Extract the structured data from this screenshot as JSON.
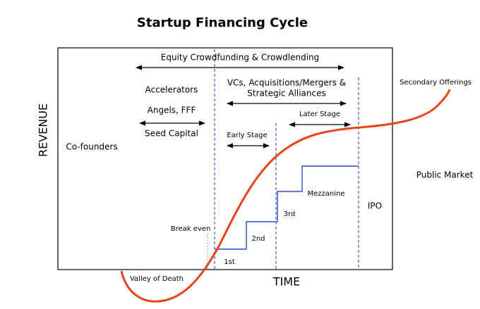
{
  "title": "Startup Financing Cycle",
  "axes": {
    "y": "REVENUE",
    "x": "TIME"
  },
  "labels": {
    "equity": "Equity Crowdfunding & Crowdlending",
    "accelerators": "Accelerators",
    "angels": "Angels, FFF",
    "seed": "Seed Capital",
    "cofounders": "Co-founders",
    "vcs_line1": "VCs, Acquisitions/Mergers &",
    "vcs_line2": "Strategic Alliances",
    "later_stage": "Later Stage",
    "early_stage": "Early Stage",
    "secondary": "Secondary Offerings",
    "public_market": "Public Market",
    "mezzanine": "Mezzanine",
    "ipo": "IPO",
    "third": "3rd",
    "break_even": "Break even",
    "second": "2nd",
    "first": "1st",
    "valley": "Valley of Death"
  }
}
